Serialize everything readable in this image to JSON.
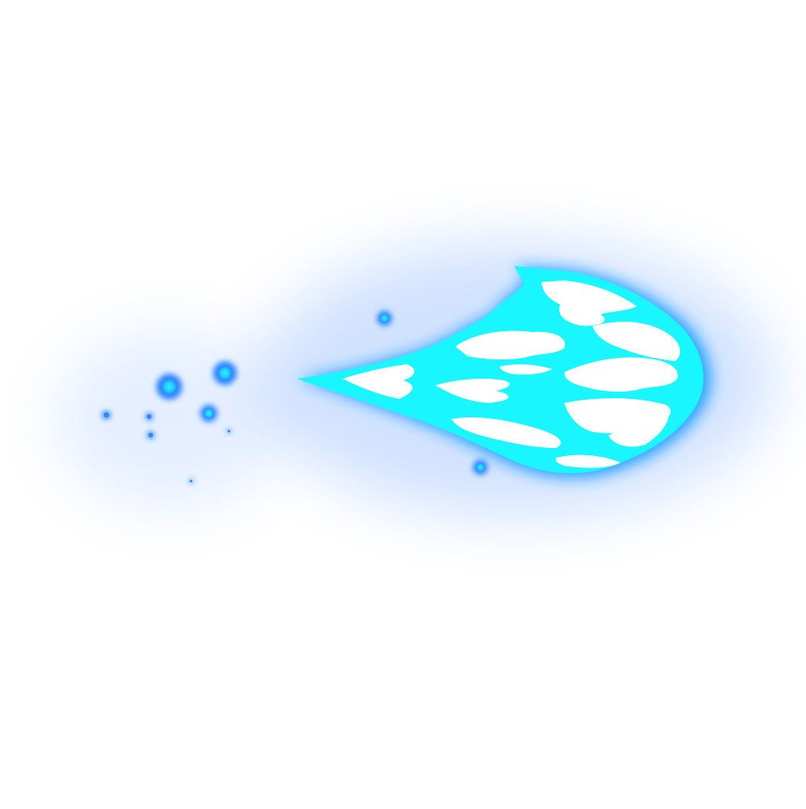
{
  "sprite": {
    "subject": "fireball",
    "colors": {
      "background": "#ffffff",
      "glow": "#2f7bff",
      "outer_flame": "#1a9cff",
      "flame_body": "#19f6ff",
      "flame_core": "#ffffff",
      "particle": "#2e86ff",
      "particle_core": "#29f2ff"
    }
  }
}
